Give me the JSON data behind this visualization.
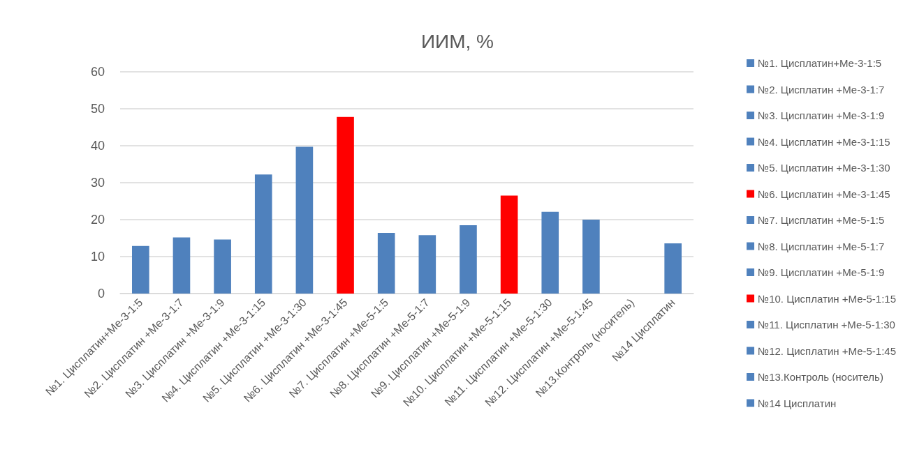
{
  "chart_data": {
    "type": "bar",
    "title": "ИИМ, %",
    "stacked": true,
    "categories": [
      "№1. Цисплатин+Ме-3-1:5",
      "№2. Цисплатин +Ме-3-1:7",
      "№3. Цисплатин +Ме-3-1:9",
      "№4. Цисплатин +Ме-3-1:15",
      "№5. Цисплатин +Ме-3-1:30",
      "№6. Цисплатин +Ме-3-1:45",
      "№7. Цисплатин +Ме-5-1:5",
      "№8. Цисплатин +Ме-5-1:7",
      "№9. Цисплатин +Ме-5-1:9",
      "№10. Цисплатин +Ме-5-1:15",
      "№11. Цисплатин +Ме-5-1:30",
      "№12. Цисплатин +Ме-5-1:45",
      "№13.Контроль (носитель)",
      "№14 Цисплатин"
    ],
    "series": [
      {
        "name": "№1. Цисплатин+Ме-3-1:5",
        "color": "#4f81bd",
        "values": [
          12.9,
          null,
          null,
          null,
          null,
          null,
          null,
          null,
          null,
          null,
          null,
          null,
          null,
          null
        ]
      },
      {
        "name": "№2. Цисплатин +Ме-3-1:7",
        "color": "#4f81bd",
        "values": [
          null,
          15.2,
          null,
          null,
          null,
          null,
          null,
          null,
          null,
          null,
          null,
          null,
          null,
          null
        ]
      },
      {
        "name": "№3. Цисплатин +Ме-3-1:9",
        "color": "#4f81bd",
        "values": [
          null,
          null,
          14.6,
          null,
          null,
          null,
          null,
          null,
          null,
          null,
          null,
          null,
          null,
          null
        ]
      },
      {
        "name": "№4. Цисплатин +Ме-3-1:15",
        "color": "#4f81bd",
        "values": [
          null,
          null,
          null,
          32.2,
          null,
          null,
          null,
          null,
          null,
          null,
          null,
          null,
          null,
          null
        ]
      },
      {
        "name": "№5. Цисплатин +Ме-3-1:30",
        "color": "#4f81bd",
        "values": [
          null,
          null,
          null,
          null,
          39.7,
          null,
          null,
          null,
          null,
          null,
          null,
          null,
          null,
          null
        ]
      },
      {
        "name": "№6. Цисплатин +Ме-3-1:45",
        "color": "#ff0000",
        "values": [
          null,
          null,
          null,
          null,
          null,
          47.8,
          null,
          null,
          null,
          null,
          null,
          null,
          null,
          null
        ]
      },
      {
        "name": "№7. Цисплатин +Ме-5-1:5",
        "color": "#4f81bd",
        "values": [
          null,
          null,
          null,
          null,
          null,
          null,
          16.4,
          null,
          null,
          null,
          null,
          null,
          null,
          null
        ]
      },
      {
        "name": "№8. Цисплатин +Ме-5-1:7",
        "color": "#4f81bd",
        "values": [
          null,
          null,
          null,
          null,
          null,
          null,
          null,
          15.8,
          null,
          null,
          null,
          null,
          null,
          null
        ]
      },
      {
        "name": "№9. Цисплатин +Ме-5-1:9",
        "color": "#4f81bd",
        "values": [
          null,
          null,
          null,
          null,
          null,
          null,
          null,
          null,
          18.5,
          null,
          null,
          null,
          null,
          null
        ]
      },
      {
        "name": "№10. Цисплатин +Ме-5-1:15",
        "color": "#ff0000",
        "values": [
          null,
          null,
          null,
          null,
          null,
          null,
          null,
          null,
          null,
          26.5,
          null,
          null,
          null,
          null
        ]
      },
      {
        "name": "№11. Цисплатин +Ме-5-1:30",
        "color": "#4f81bd",
        "values": [
          null,
          null,
          null,
          null,
          null,
          null,
          null,
          null,
          null,
          null,
          22.1,
          null,
          null,
          null
        ]
      },
      {
        "name": "№12. Цисплатин +Ме-5-1:45",
        "color": "#4f81bd",
        "values": [
          null,
          null,
          null,
          null,
          null,
          null,
          null,
          null,
          null,
          null,
          null,
          20.0,
          null,
          null
        ]
      },
      {
        "name": "№13.Контроль (носитель)",
        "color": "#4f81bd",
        "values": [
          null,
          null,
          null,
          null,
          null,
          null,
          null,
          null,
          null,
          null,
          null,
          null,
          null,
          null
        ]
      },
      {
        "name": "№14 Цисплатин",
        "color": "#4f81bd",
        "values": [
          null,
          null,
          null,
          null,
          null,
          null,
          null,
          null,
          null,
          null,
          null,
          null,
          null,
          13.6
        ]
      }
    ],
    "ylim": [
      0,
      60
    ],
    "yticks": [
      0,
      10,
      20,
      30,
      40,
      50,
      60
    ],
    "grid": "y",
    "legend": "right"
  }
}
